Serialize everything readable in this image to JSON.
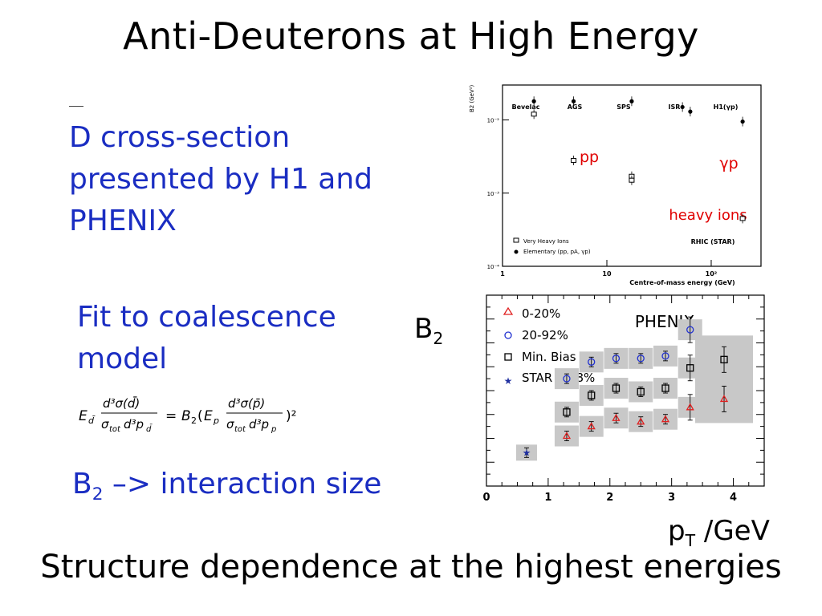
{
  "slide": {
    "title": "Anti-Deuterons at High Energy",
    "bullet1": {
      "lines": [
        "D cross-section",
        "presented by H1 and",
        "PHENIX"
      ]
    },
    "bullet2": {
      "lines": [
        "Fit to coalescence",
        "model"
      ]
    },
    "bullet3": {
      "base": "B",
      "sub": "2",
      "rest": " –> interaction size"
    },
    "b2_label": {
      "base": "B",
      "sub": "2"
    },
    "x_axis_label": {
      "base": "p",
      "sub": "T",
      "rest": " /GeV"
    },
    "conclusion": "Structure dependence at the highest energies",
    "colors": {
      "text_blue": "#1a2dc2",
      "annotation_red": "#e00000"
    }
  },
  "chart_data": [
    {
      "type": "scatter",
      "ylabel": "B2 (GeV²)",
      "xlabel": "Centre-of-mass energy (GeV)",
      "x_scale": "log",
      "y_scale": "log",
      "xlim": [
        1,
        300
      ],
      "ylim": [
        0.0001,
        0.03
      ],
      "x_ticks": [
        "1",
        "10",
        "10²"
      ],
      "y_ticks": [
        "10⁻²",
        "10⁻³",
        "10⁻⁴"
      ],
      "experiment_labels": [
        "Bevelac",
        "AGS",
        "SPS",
        "ISR",
        "H1(γp)",
        "RHIC\n(STAR)"
      ],
      "annotations": [
        "pp",
        "γp",
        "heavy ions"
      ],
      "legend": [
        "Very Heavy Ions",
        "Elementary (pp, pA, γp)"
      ],
      "legend_placement": "bottom-left",
      "series": [
        {
          "name": "Very Heavy Ions",
          "marker": "open-square",
          "points": [
            [
              2,
              0.012
            ],
            [
              4.8,
              0.0028
            ],
            [
              17.3,
              0.0017
            ],
            [
              17.3,
              0.0015
            ],
            [
              200,
              0.00045
            ]
          ]
        },
        {
          "name": "Elementary (pp, pA, γp)",
          "marker": "filled-diamond",
          "points": [
            [
              2,
              0.018
            ],
            [
              4.8,
              0.018
            ],
            [
              17.3,
              0.018
            ],
            [
              53,
              0.015
            ],
            [
              63,
              0.013
            ],
            [
              200,
              0.0095
            ]
          ]
        }
      ]
    },
    {
      "type": "scatter",
      "title": "PHENIX",
      "xlim": [
        0,
        4.5
      ],
      "x_ticks": [
        "0",
        "1",
        "2",
        "3",
        "4"
      ],
      "legend": [
        "0-20%",
        "20-92%",
        "Min. Bias",
        "STAR 0-18%"
      ],
      "legend_placement": "top-left",
      "series": [
        {
          "name": "0-20%",
          "marker": "open-triangle",
          "color": "#e02020",
          "points": [
            [
              1.3,
              2.1
            ],
            [
              1.7,
              2.5
            ],
            [
              2.1,
              2.85
            ],
            [
              2.5,
              2.7
            ],
            [
              2.9,
              2.8
            ],
            [
              3.3,
              3.3
            ],
            [
              3.85,
              3.65
            ]
          ]
        },
        {
          "name": "20-92%",
          "marker": "open-circle",
          "color": "#2030d0",
          "points": [
            [
              1.3,
              4.5
            ],
            [
              1.7,
              5.2
            ],
            [
              2.1,
              5.35
            ],
            [
              2.5,
              5.35
            ],
            [
              2.9,
              5.45
            ],
            [
              3.3,
              6.55
            ]
          ]
        },
        {
          "name": "Min. Bias",
          "marker": "open-square",
          "color": "#000000",
          "points": [
            [
              1.3,
              3.1
            ],
            [
              1.7,
              3.8
            ],
            [
              2.1,
              4.1
            ],
            [
              2.5,
              3.95
            ],
            [
              2.9,
              4.1
            ],
            [
              3.3,
              4.95
            ],
            [
              3.85,
              5.3
            ]
          ]
        },
        {
          "name": "STAR 0-18%",
          "marker": "star",
          "color": "#2030a0",
          "points": [
            [
              0.65,
              1.4
            ]
          ]
        }
      ]
    }
  ]
}
